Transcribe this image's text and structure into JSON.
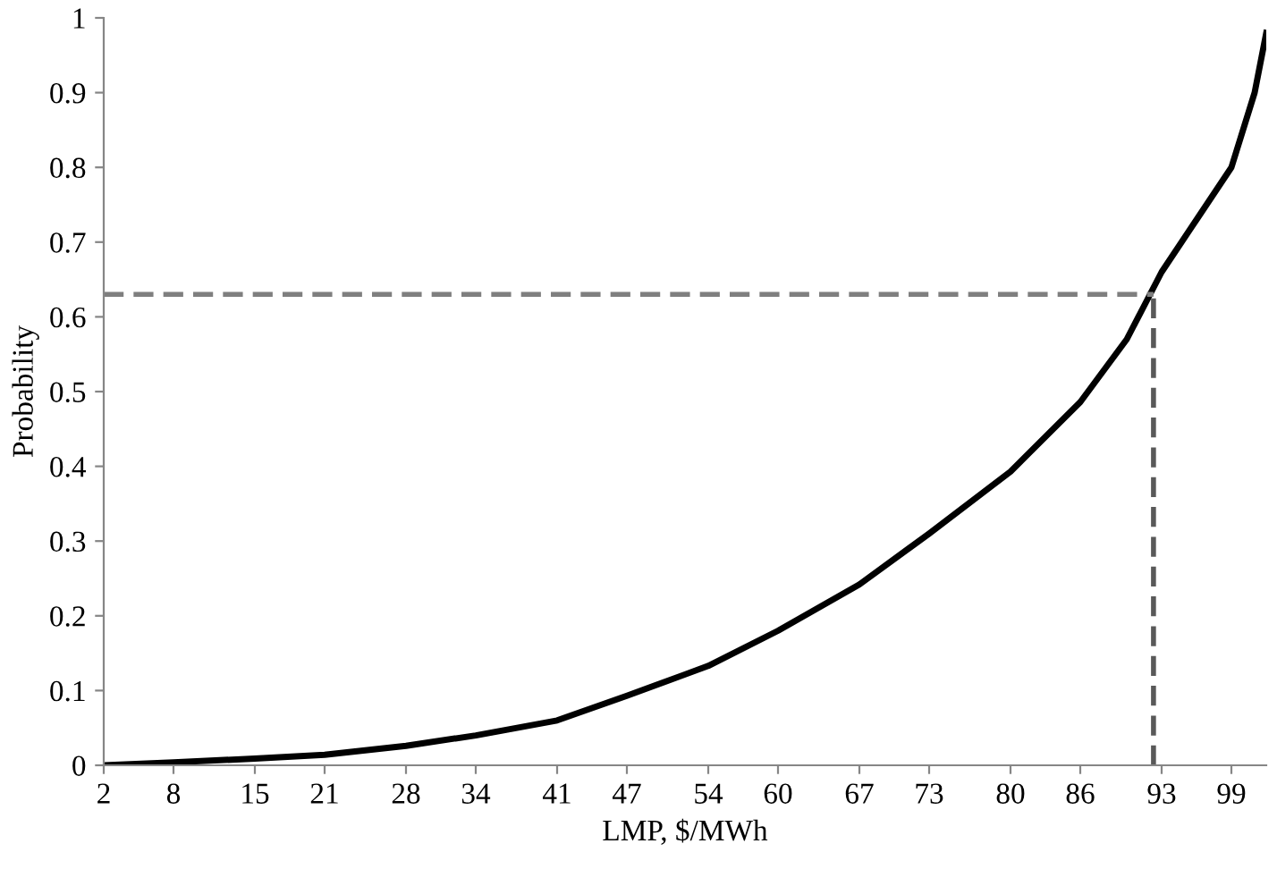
{
  "chart_data": {
    "type": "line",
    "xlabel": "LMP, $/MWh",
    "ylabel": "Probability",
    "series": [
      {
        "color": "#000000",
        "line_style": "solid",
        "x": [
          2,
          8,
          15,
          21,
          28,
          34,
          41,
          47,
          54,
          60,
          67,
          73,
          80,
          86,
          90,
          93,
          96,
          99,
          101,
          102
        ],
        "values": [
          0,
          0.004,
          0.009,
          0.014,
          0.026,
          0.04,
          0.06,
          0.093,
          0.133,
          0.18,
          0.242,
          0.31,
          0.393,
          0.486,
          0.57,
          0.66,
          0.73,
          0.8,
          0.9,
          0.98
        ]
      },
      {
        "color": "#7f7f7f",
        "line_style": "dashed",
        "x": [
          2,
          92.3
        ],
        "values": [
          0.63,
          0.63
        ]
      },
      {
        "color": "#595959",
        "line_style": "dashed",
        "x": [
          92.3,
          92.3
        ],
        "values": [
          0,
          0.63
        ]
      }
    ],
    "xlim": [
      2,
      102
    ],
    "xticks": [
      2,
      8,
      15,
      21,
      28,
      34,
      41,
      47,
      54,
      60,
      67,
      73,
      80,
      86,
      93,
      99
    ],
    "ylim": [
      0,
      1
    ],
    "yticks": [
      0,
      0.1,
      0.2,
      0.3,
      0.4,
      0.5,
      0.6,
      0.7,
      0.8,
      0.9,
      1
    ],
    "grid": false,
    "legend": false
  }
}
